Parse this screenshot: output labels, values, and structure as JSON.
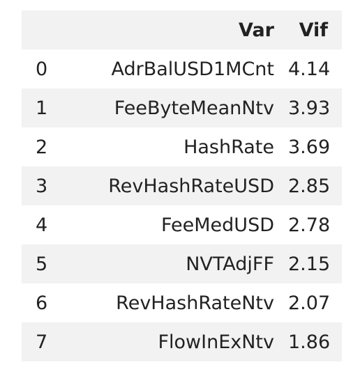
{
  "table": {
    "columns": [
      "",
      "Var",
      "Vif"
    ],
    "rows": [
      {
        "index": "0",
        "var": "AdrBalUSD1MCnt",
        "vif": "4.14"
      },
      {
        "index": "1",
        "var": "FeeByteMeanNtv",
        "vif": "3.93"
      },
      {
        "index": "2",
        "var": "HashRate",
        "vif": "3.69"
      },
      {
        "index": "3",
        "var": "RevHashRateUSD",
        "vif": "2.85"
      },
      {
        "index": "4",
        "var": "FeeMedUSD",
        "vif": "2.78"
      },
      {
        "index": "5",
        "var": "NVTAdjFF",
        "vif": "2.15"
      },
      {
        "index": "6",
        "var": "RevHashRateNtv",
        "vif": "2.07"
      },
      {
        "index": "7",
        "var": "FlowInExNtv",
        "vif": "1.86"
      }
    ]
  },
  "colors": {
    "stripe": "#f2f2f2",
    "text": "#222222",
    "background": "#ffffff"
  }
}
